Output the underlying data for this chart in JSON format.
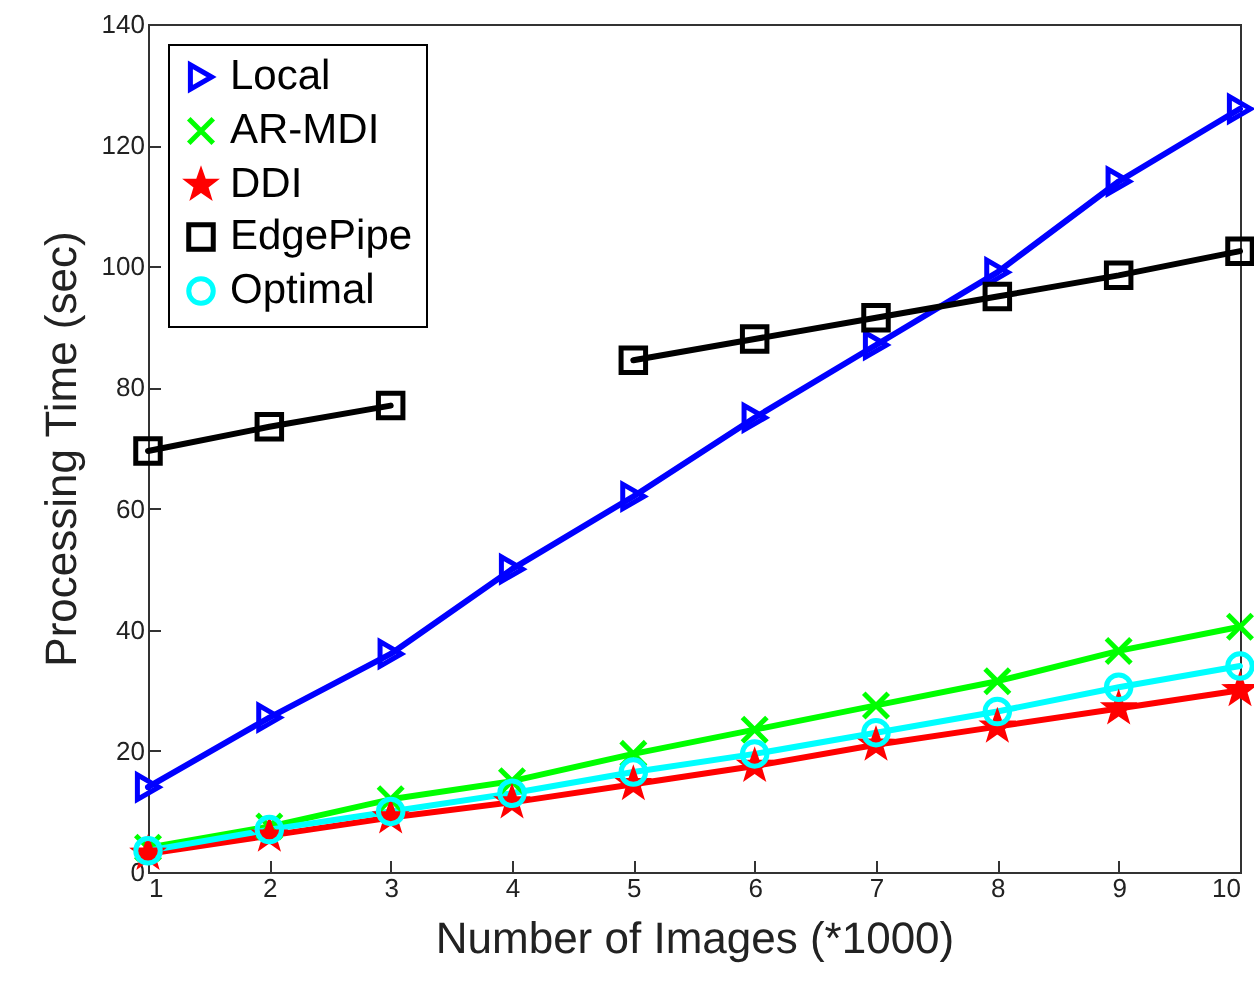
{
  "chart_data": {
    "type": "line",
    "xlabel": "Number of Images (*1000)",
    "ylabel": "Processing Time (sec)",
    "x": [
      1,
      2,
      3,
      4,
      5,
      6,
      7,
      8,
      9,
      10
    ],
    "xlim": [
      1,
      10
    ],
    "xticks": [
      1,
      2,
      3,
      4,
      5,
      6,
      7,
      8,
      9,
      10
    ],
    "ylim": [
      0,
      140
    ],
    "yticks": [
      0,
      20,
      40,
      60,
      80,
      100,
      120,
      140
    ],
    "grid": false,
    "legend": "top left",
    "series": [
      {
        "name": "Local",
        "color": "#0000ff",
        "marker": "triangle",
        "values": [
          14,
          25.5,
          36,
          50,
          62,
          75,
          87,
          99,
          114,
          126
        ]
      },
      {
        "name": "AR-MDI",
        "color": "#00ff00",
        "marker": "cross",
        "values": [
          4,
          7.5,
          12,
          15,
          19.5,
          23.5,
          27.5,
          31.5,
          36.5,
          40.5
        ]
      },
      {
        "name": "DDI",
        "color": "#ff0000",
        "marker": "star",
        "values": [
          3,
          6,
          9,
          11.5,
          14.5,
          17.5,
          21,
          24,
          27,
          30
        ]
      },
      {
        "name": "EdgePipe",
        "color": "#000000",
        "marker": "square",
        "values": [
          69.5,
          73.5,
          77,
          null,
          84.5,
          88,
          91.5,
          95,
          98.5,
          102.5
        ]
      },
      {
        "name": "Optimal",
        "color": "#00ffff",
        "marker": "circle",
        "values": [
          3.5,
          7,
          10,
          13,
          16.5,
          19.5,
          23,
          26.5,
          30.5,
          34
        ]
      }
    ]
  }
}
